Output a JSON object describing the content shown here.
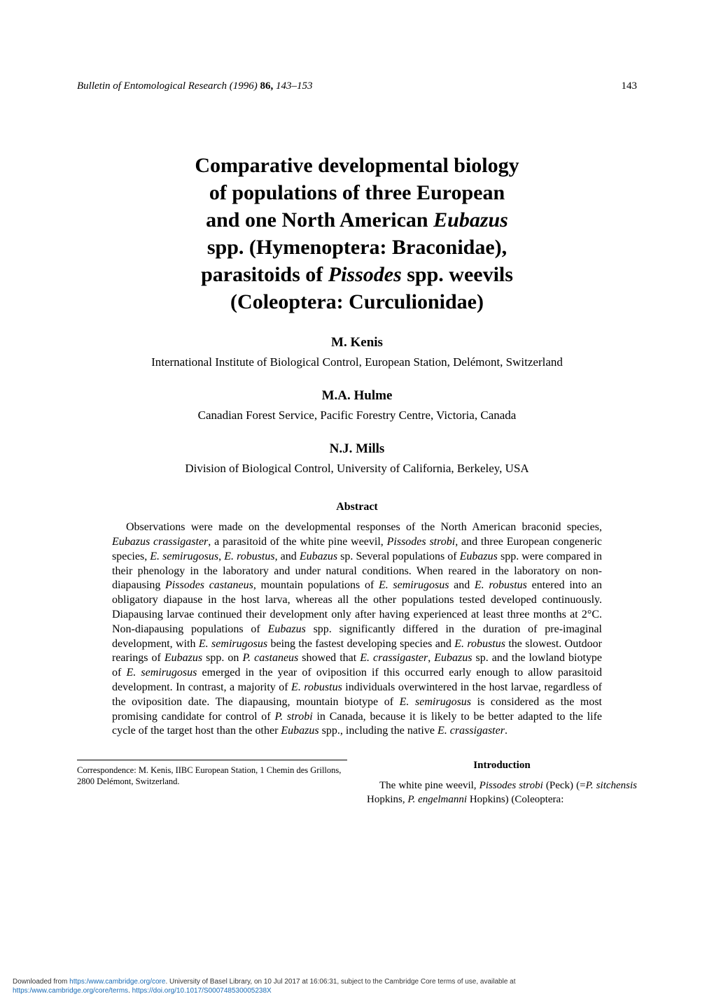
{
  "header": {
    "journal": "Bulletin of Entomological Research",
    "year": "(1996)",
    "volume": "86,",
    "pages": "143–153",
    "page_number": "143"
  },
  "title": {
    "line1": "Comparative developmental biology",
    "line2": "of populations of three European",
    "line3_pre": "and one North American ",
    "line3_italic": "Eubazus",
    "line4": "spp. (Hymenoptera: Braconidae),",
    "line5_pre": "parasitoids of ",
    "line5_italic": "Pissodes",
    "line5_post": " spp. weevils",
    "line6": "(Coleoptera: Curculionidae)"
  },
  "authors": [
    {
      "name": "M. Kenis",
      "affiliation": "International Institute of Biological Control, European Station, Delémont, Switzerland"
    },
    {
      "name": "M.A. Hulme",
      "affiliation": "Canadian Forest Service, Pacific Forestry Centre, Victoria, Canada"
    },
    {
      "name": "N.J. Mills",
      "affiliation": "Division of Biological Control, University of California, Berkeley, USA"
    }
  ],
  "abstract": {
    "heading": "Abstract",
    "body_html": "Observations were made on the developmental responses of the North American braconid species, <span class=\"italic-inline\">Eubazus crassigaster</span>, a parasitoid of the white pine weevil, <span class=\"italic-inline\">Pissodes strobi</span>, and three European congeneric species, <span class=\"italic-inline\">E. semirugosus</span>, <span class=\"italic-inline\">E. robustus</span>, and <span class=\"italic-inline\">Eubazus</span> sp. Several populations of <span class=\"italic-inline\">Eubazus</span> spp. were compared in their phenology in the laboratory and under natural conditions. When reared in the laboratory on non-diapausing <span class=\"italic-inline\">Pissodes castaneus</span>, mountain populations of <span class=\"italic-inline\">E. semirugosus</span> and <span class=\"italic-inline\">E. robustus</span> entered into an obligatory diapause in the host larva, whereas all the other populations tested developed continuously. Diapausing larvae continued their development only after having experienced at least three months at 2°C. Non-diapausing populations of <span class=\"italic-inline\">Eubazus</span> spp. significantly differed in the duration of pre-imaginal development, with <span class=\"italic-inline\">E. semirugosus</span> being the fastest developing species and <span class=\"italic-inline\">E. robustus</span> the slowest. Outdoor rearings of <span class=\"italic-inline\">Eubazus</span> spp. on <span class=\"italic-inline\">P. castaneus</span> showed that <span class=\"italic-inline\">E. crassigaster</span>, <span class=\"italic-inline\">Eubazus</span> sp. and the lowland biotype of <span class=\"italic-inline\">E. semirugosus</span> emerged in the year of oviposition if this occurred early enough to allow parasitoid development. In contrast, a majority of <span class=\"italic-inline\">E. robustus</span> individuals overwintered in the host larvae, regardless of the oviposition date. The diapausing, mountain biotype of <span class=\"italic-inline\">E. semirugosus</span> is considered as the most promising candidate for control of <span class=\"italic-inline\">P. strobi</span> in Canada, because it is likely to be better adapted to the life cycle of the target host than the other <span class=\"italic-inline\">Eubazus</span> spp., including the native <span class=\"italic-inline\">E. crassigaster</span>."
  },
  "correspondence": "Correspondence: M. Kenis, IIBC European Station, 1 Chemin des Grillons, 2800 Delémont, Switzerland.",
  "introduction": {
    "heading": "Introduction",
    "body_html": "The white pine weevil, <span class=\"italic-inline\">Pissodes strobi</span> (Peck) (=<span class=\"italic-inline\">P. sitchensis</span> Hopkins, <span class=\"italic-inline\">P. engelmanni</span> Hopkins) (Coleoptera:"
  },
  "footer": {
    "line1_pre": "Downloaded from ",
    "line1_link1": "https:/www.cambridge.org/core",
    "line1_mid": ". University of Basel Library, on 10 Jul 2017 at 16:06:31, subject to the Cambridge Core terms of use, available at",
    "line2_link1": "https:/www.cambridge.org/core/terms",
    "line2_mid": ". ",
    "line2_link2": "https://doi.org/10.1017/S000748530005238X"
  },
  "colors": {
    "text": "#000000",
    "background": "#ffffff",
    "link": "#1a6bb5"
  },
  "typography": {
    "body_font": "Times New Roman",
    "title_fontsize": 30,
    "author_fontsize": 19,
    "affiliation_fontsize": 17,
    "abstract_fontsize": 16,
    "footer_fontsize": 10
  }
}
